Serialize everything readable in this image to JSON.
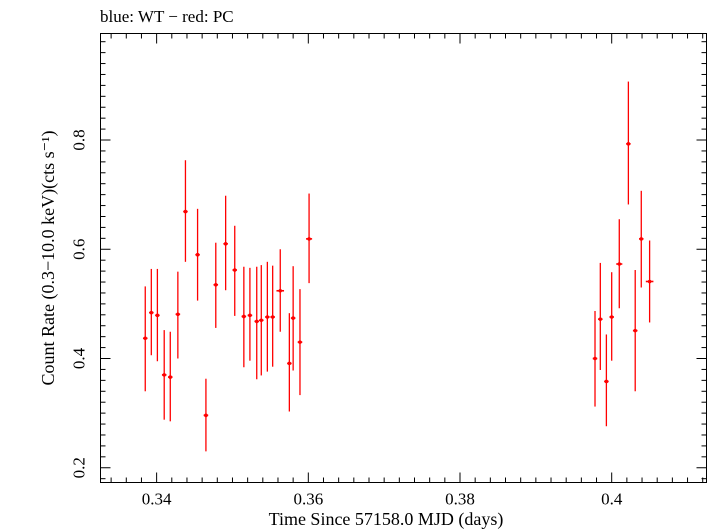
{
  "chart_data": {
    "type": "scatter",
    "title": "blue: WT − red: PC",
    "xlabel": "Time Since 57158.0 MJD (days)",
    "ylabel": "Count Rate (0.3−10.0 keV)(cts s⁻¹)",
    "xlim": [
      0.3326,
      0.4125
    ],
    "ylim": [
      0.173,
      0.995
    ],
    "x_ticks": [
      0.34,
      0.36,
      0.38,
      0.4
    ],
    "x_tick_labels": [
      "0.34",
      "0.36",
      "0.38",
      "0.4"
    ],
    "y_ticks": [
      0.2,
      0.4,
      0.6,
      0.8
    ],
    "y_tick_labels": [
      "0.2",
      "0.4",
      "0.6",
      "0.8"
    ],
    "grid": false,
    "series": [
      {
        "name": "PC",
        "color": "#ff0000",
        "points": [
          {
            "x": 0.3385,
            "y": 0.437,
            "ylo": 0.34,
            "yhi": 0.532,
            "xerr": 0.0003
          },
          {
            "x": 0.3393,
            "y": 0.484,
            "ylo": 0.406,
            "yhi": 0.564,
            "xerr": 0.0003
          },
          {
            "x": 0.3401,
            "y": 0.479,
            "ylo": 0.395,
            "yhi": 0.564,
            "xerr": 0.0003
          },
          {
            "x": 0.341,
            "y": 0.37,
            "ylo": 0.288,
            "yhi": 0.452,
            "xerr": 0.0003
          },
          {
            "x": 0.3418,
            "y": 0.366,
            "ylo": 0.285,
            "yhi": 0.449,
            "xerr": 0.0003
          },
          {
            "x": 0.3428,
            "y": 0.481,
            "ylo": 0.4,
            "yhi": 0.559,
            "xerr": 0.0003
          },
          {
            "x": 0.3438,
            "y": 0.669,
            "ylo": 0.577,
            "yhi": 0.763,
            "xerr": 0.0003
          },
          {
            "x": 0.3454,
            "y": 0.59,
            "ylo": 0.506,
            "yhi": 0.674,
            "xerr": 0.0003
          },
          {
            "x": 0.3465,
            "y": 0.296,
            "ylo": 0.23,
            "yhi": 0.363,
            "xerr": 0.0003
          },
          {
            "x": 0.3478,
            "y": 0.535,
            "ylo": 0.456,
            "yhi": 0.612,
            "xerr": 0.0003
          },
          {
            "x": 0.3491,
            "y": 0.61,
            "ylo": 0.525,
            "yhi": 0.698,
            "xerr": 0.0003
          },
          {
            "x": 0.3503,
            "y": 0.562,
            "ylo": 0.478,
            "yhi": 0.643,
            "xerr": 0.0003
          },
          {
            "x": 0.3515,
            "y": 0.477,
            "ylo": 0.384,
            "yhi": 0.568,
            "xerr": 0.0003
          },
          {
            "x": 0.3523,
            "y": 0.479,
            "ylo": 0.396,
            "yhi": 0.566,
            "xerr": 0.0003
          },
          {
            "x": 0.3532,
            "y": 0.468,
            "ylo": 0.362,
            "yhi": 0.568,
            "xerr": 0.0003
          },
          {
            "x": 0.3538,
            "y": 0.47,
            "ylo": 0.369,
            "yhi": 0.571,
            "xerr": 0.0003
          },
          {
            "x": 0.3546,
            "y": 0.476,
            "ylo": 0.376,
            "yhi": 0.577,
            "xerr": 0.0003
          },
          {
            "x": 0.3553,
            "y": 0.476,
            "ylo": 0.385,
            "yhi": 0.57,
            "xerr": 0.0003
          },
          {
            "x": 0.3563,
            "y": 0.524,
            "ylo": 0.449,
            "yhi": 0.6,
            "xerr": 0.0005
          },
          {
            "x": 0.3575,
            "y": 0.391,
            "ylo": 0.303,
            "yhi": 0.483,
            "xerr": 0.0003
          },
          {
            "x": 0.358,
            "y": 0.474,
            "ylo": 0.378,
            "yhi": 0.569,
            "xerr": 0.0003
          },
          {
            "x": 0.3589,
            "y": 0.43,
            "ylo": 0.333,
            "yhi": 0.527,
            "xerr": 0.0003
          },
          {
            "x": 0.3601,
            "y": 0.619,
            "ylo": 0.538,
            "yhi": 0.702,
            "xerr": 0.0004
          },
          {
            "x": 0.3978,
            "y": 0.4,
            "ylo": 0.312,
            "yhi": 0.487,
            "xerr": 0.0003
          },
          {
            "x": 0.3985,
            "y": 0.472,
            "ylo": 0.379,
            "yhi": 0.575,
            "xerr": 0.0003
          },
          {
            "x": 0.3993,
            "y": 0.358,
            "ylo": 0.276,
            "yhi": 0.444,
            "xerr": 0.0003
          },
          {
            "x": 0.4,
            "y": 0.476,
            "ylo": 0.396,
            "yhi": 0.558,
            "xerr": 0.0003
          },
          {
            "x": 0.401,
            "y": 0.573,
            "ylo": 0.492,
            "yhi": 0.655,
            "xerr": 0.0004
          },
          {
            "x": 0.4022,
            "y": 0.793,
            "ylo": 0.682,
            "yhi": 0.907,
            "xerr": 0.0003
          },
          {
            "x": 0.4031,
            "y": 0.451,
            "ylo": 0.34,
            "yhi": 0.562,
            "xerr": 0.0003
          },
          {
            "x": 0.4039,
            "y": 0.619,
            "ylo": 0.53,
            "yhi": 0.707,
            "xerr": 0.0003
          },
          {
            "x": 0.405,
            "y": 0.541,
            "ylo": 0.466,
            "yhi": 0.616,
            "xerr": 0.0005
          }
        ]
      }
    ]
  }
}
